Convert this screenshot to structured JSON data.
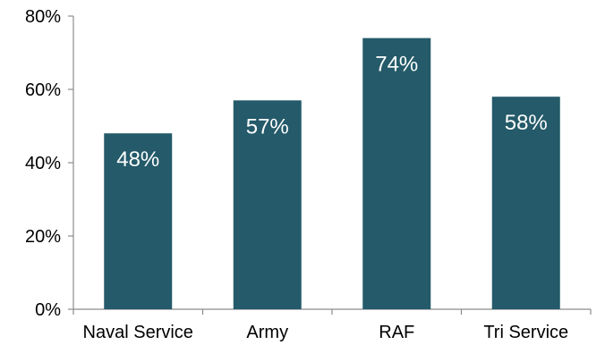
{
  "chart_data": {
    "type": "bar",
    "categories": [
      "Naval Service",
      "Army",
      "RAF",
      "Tri Service"
    ],
    "values": [
      48,
      57,
      74,
      58
    ],
    "data_labels": [
      "48%",
      "57%",
      "74%",
      "58%"
    ],
    "ylim": [
      0,
      80
    ],
    "yticks": [
      0,
      20,
      40,
      60,
      80
    ],
    "ytick_labels": [
      "0%",
      "20%",
      "40%",
      "60%",
      "80%"
    ],
    "title": "",
    "xlabel": "",
    "ylabel": "",
    "grid": false,
    "bar_color": "#245a69"
  }
}
